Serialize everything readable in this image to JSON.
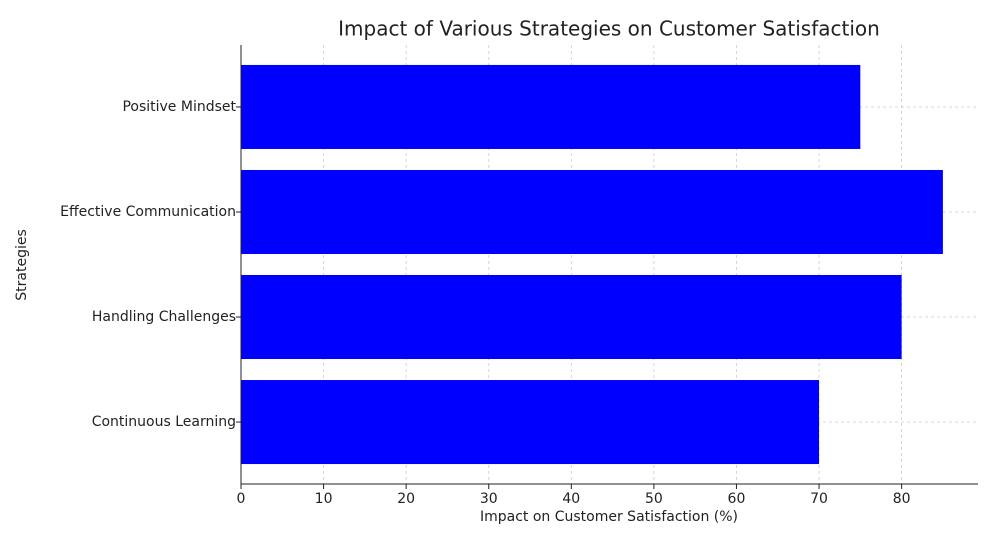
{
  "chart_data": {
    "type": "barh",
    "title": "Impact of Various Strategies on Customer Satisfaction",
    "x_label": "Impact on Customer Satisfaction (%)",
    "y_label": "Strategies",
    "categories": [
      "Positive Mindset",
      "Effective Communication",
      "Handling Challenges",
      "Continuous Learning"
    ],
    "values": [
      75,
      85,
      80,
      70
    ],
    "color": "#0000ff",
    "xlim": [
      0,
      89.25
    ],
    "xticks": [
      0,
      10,
      20,
      30,
      40,
      50,
      60,
      70,
      80
    ],
    "grid": true
  }
}
